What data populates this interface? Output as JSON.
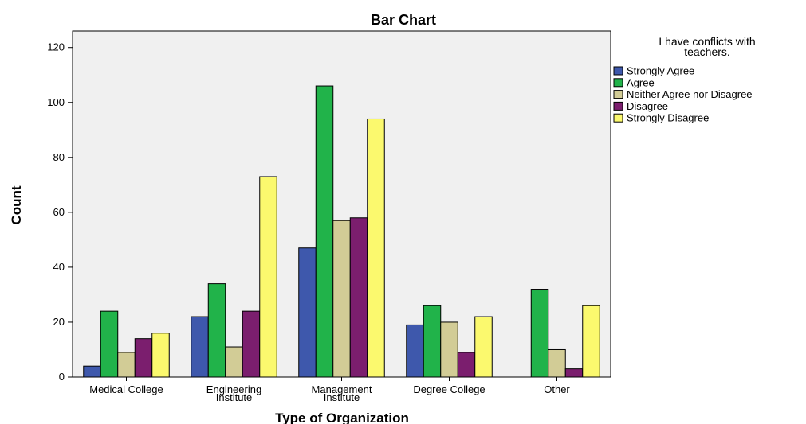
{
  "chart_data": {
    "type": "bar",
    "title": "Bar Chart",
    "xlabel": "Type of Organization",
    "ylabel": "Count",
    "categories": [
      [
        "Medical College"
      ],
      [
        "Engineering",
        "Institute"
      ],
      [
        "Management",
        "Institute"
      ],
      [
        "Degree College"
      ],
      [
        "Other"
      ]
    ],
    "ylim": [
      0,
      126
    ],
    "yticks": [
      0,
      20,
      40,
      60,
      80,
      100,
      120
    ],
    "grid": false,
    "legend": {
      "title": [
        "I have conflicts with",
        "teachers."
      ],
      "placement": "right"
    },
    "series": [
      {
        "name": "Strongly Agree",
        "color": "#3E58AC",
        "values": [
          4,
          22,
          47,
          19,
          0
        ]
      },
      {
        "name": "Agree",
        "color": "#21B34A",
        "values": [
          24,
          34,
          106,
          26,
          32
        ]
      },
      {
        "name": "Neither Agree nor Disagree",
        "color": "#D2CC96",
        "values": [
          9,
          11,
          57,
          20,
          10
        ]
      },
      {
        "name": "Disagree",
        "color": "#7B1E6E",
        "values": [
          14,
          24,
          58,
          9,
          3
        ]
      },
      {
        "name": "Strongly Disagree",
        "color": "#FBF96E",
        "values": [
          16,
          73,
          94,
          22,
          26
        ]
      }
    ]
  }
}
